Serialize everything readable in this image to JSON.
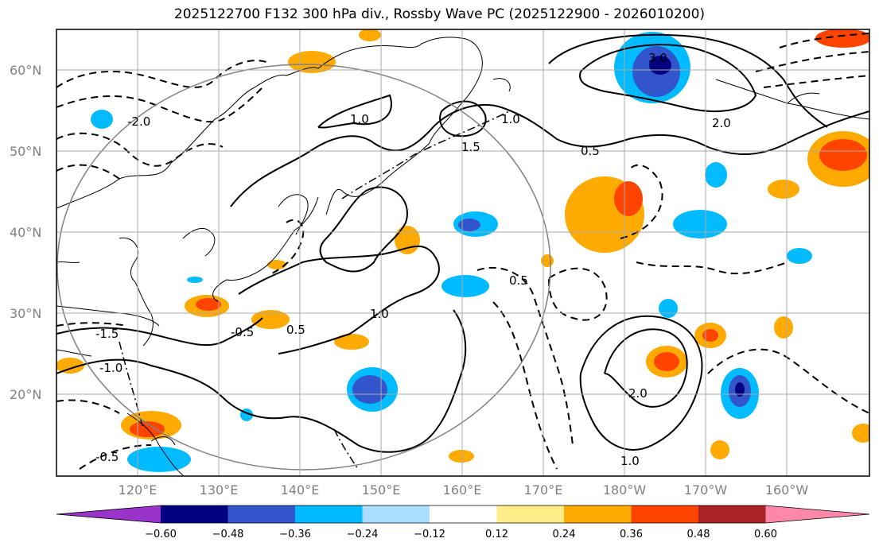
{
  "title": "2025122700 F132 300 hPa div., Rossby Wave PC (2025122900 - 2026010200)",
  "map": {
    "lat_labels": [
      "60°N",
      "50°N",
      "40°N",
      "30°N",
      "20°N"
    ],
    "lon_labels": [
      "120°E",
      "130°E",
      "140°E",
      "150°E",
      "160°E",
      "170°E",
      "180°W",
      "170°W",
      "160°W"
    ],
    "contour_labels": [
      "-2.0",
      "-1.5",
      "-1.0",
      "-0.5",
      "0.5",
      "1.0",
      "1.5",
      "2.0",
      "3.0"
    ],
    "grid": true
  },
  "colorbar": {
    "labels": [
      "−0.60",
      "−0.48",
      "−0.36",
      "−0.24",
      "−0.12",
      "0.12",
      "0.24",
      "0.36",
      "0.48",
      "0.60"
    ],
    "colors": [
      "#9933cc",
      "#000080",
      "#3355cc",
      "#00bbff",
      "#aaddff",
      "#ffffff",
      "#ffee88",
      "#ffaa00",
      "#ff4400",
      "#aa2222",
      "#ff88aa"
    ]
  }
}
